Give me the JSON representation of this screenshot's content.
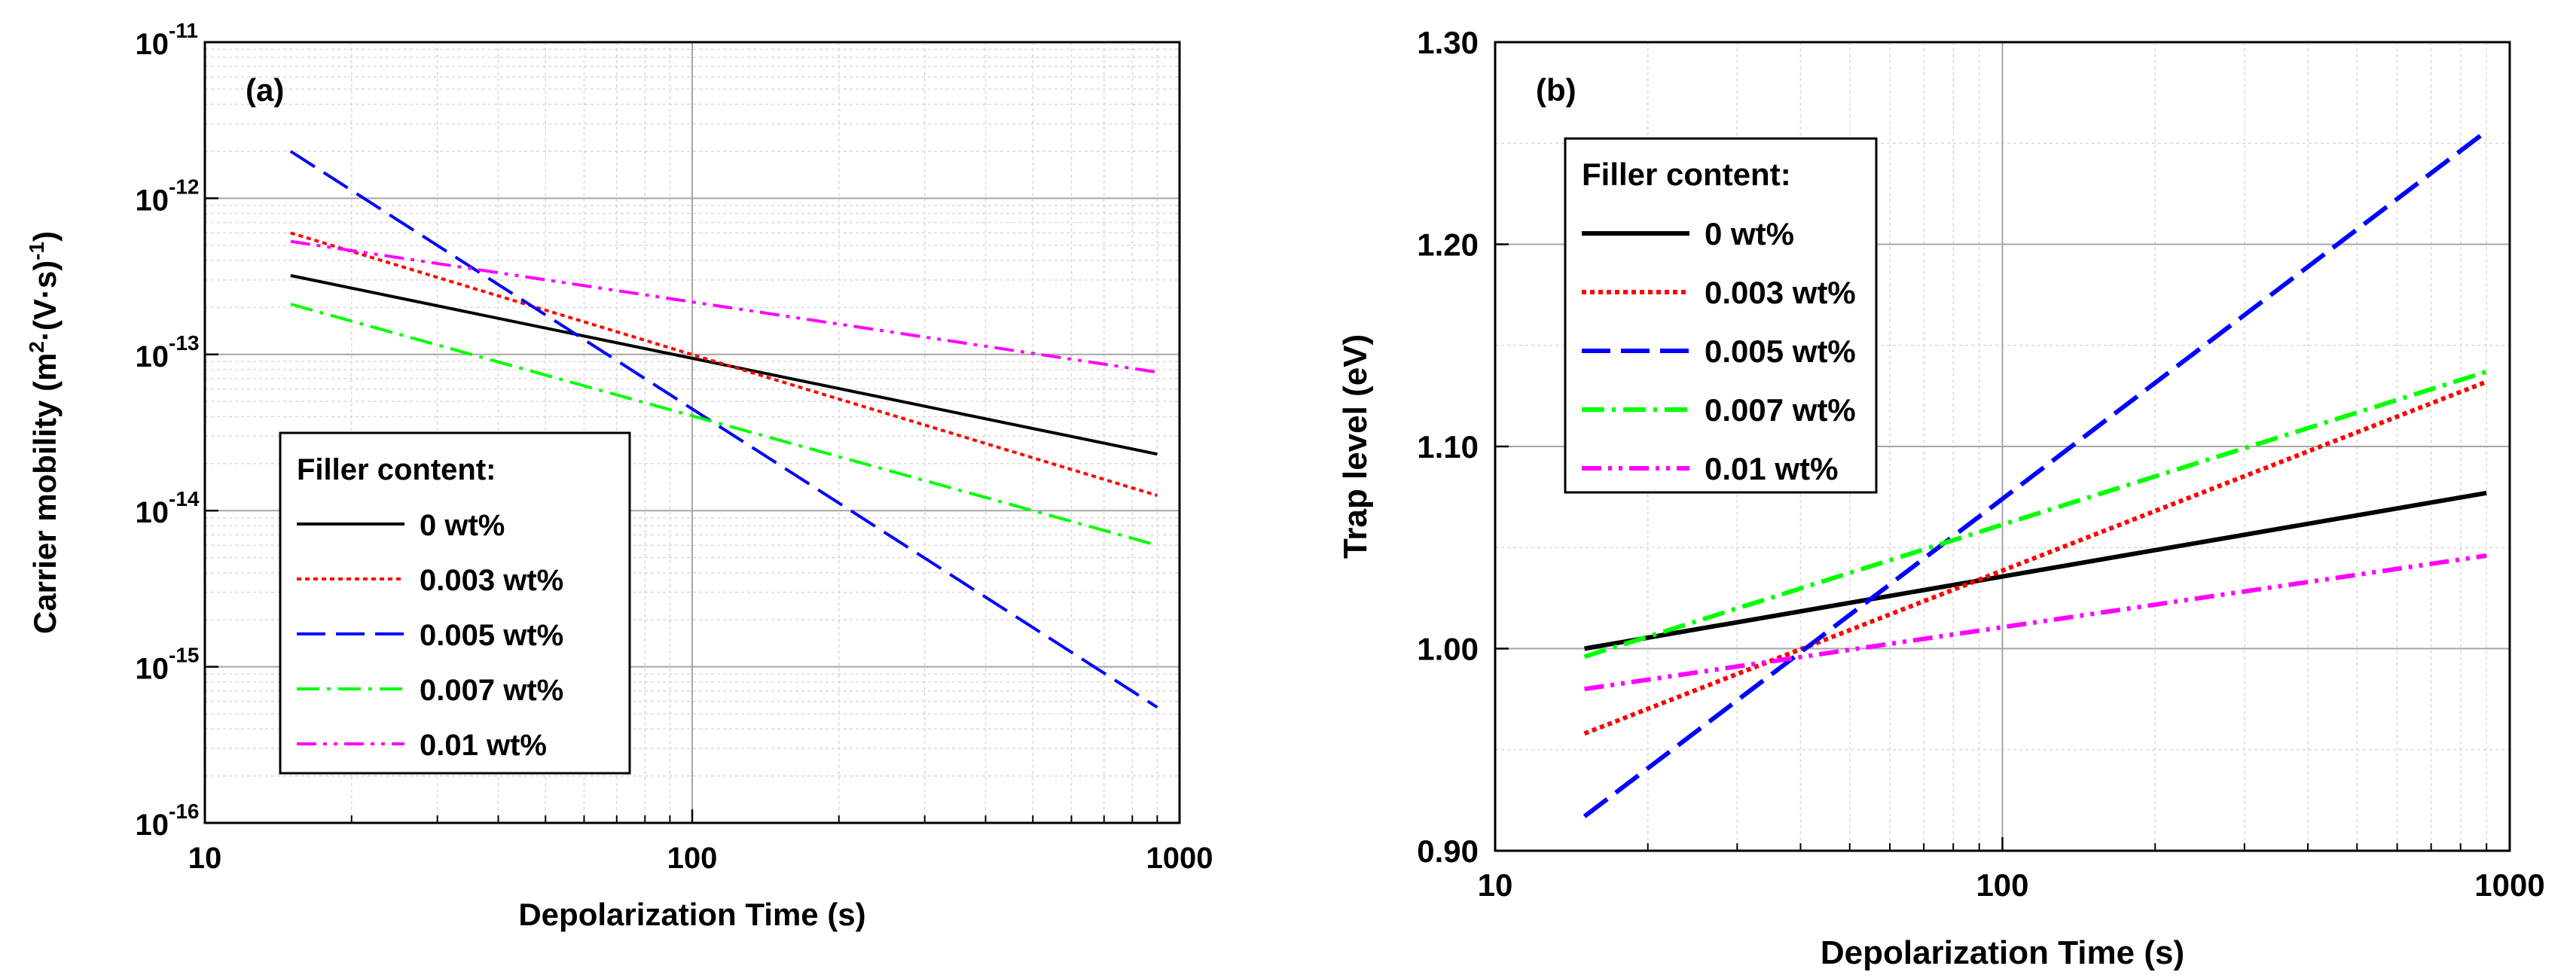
{
  "chart_data": [
    {
      "type": "line",
      "panel_label": "(a)",
      "xlabel": "Depolarization Time (s)",
      "ylabel_main": "Carrier mobility (m",
      "ylabel_sup1": "2",
      "ylabel_mid": "·(V·s)",
      "ylabel_sup2": "-1",
      "ylabel_end": ")",
      "xscale": "log",
      "yscale": "log",
      "xlim": [
        10,
        1000
      ],
      "ylim": [
        1e-16,
        1e-11
      ],
      "x_ticks": [
        {
          "v": 10,
          "t": "10"
        },
        {
          "v": 100,
          "t": "100"
        },
        {
          "v": 1000,
          "t": "1000"
        }
      ],
      "y_ticks": [
        {
          "v": 1e-16,
          "b": "10",
          "e": "-16"
        },
        {
          "v": 1e-15,
          "b": "10",
          "e": "-15"
        },
        {
          "v": 1e-14,
          "b": "10",
          "e": "-14"
        },
        {
          "v": 1e-13,
          "b": "10",
          "e": "-13"
        },
        {
          "v": 1e-12,
          "b": "10",
          "e": "-12"
        },
        {
          "v": 1e-11,
          "b": "10",
          "e": "-11"
        }
      ],
      "grid": true,
      "legend": {
        "title": "Filler content:",
        "position": "lower-left"
      },
      "series": [
        {
          "name": "0 wt%",
          "color": "#000000",
          "dash": "solid",
          "x": [
            15,
            900
          ],
          "y": [
            3.2e-13,
            2.3e-14
          ]
        },
        {
          "name": "0.003 wt%",
          "color": "#ff0000",
          "dash": "dotted",
          "x": [
            15,
            900
          ],
          "y": [
            6e-13,
            1.25e-14
          ]
        },
        {
          "name": "0.005 wt%",
          "color": "#0000ff",
          "dash": "dashed",
          "x": [
            15,
            900
          ],
          "y": [
            2e-12,
            5.5e-16
          ]
        },
        {
          "name": "0.007 wt%",
          "color": "#00ff00",
          "dash": "dashdot",
          "x": [
            15,
            900
          ],
          "y": [
            2.1e-13,
            6e-15
          ]
        },
        {
          "name": "0.01 wt%",
          "color": "#ff00ff",
          "dash": "dashdotdot",
          "x": [
            15,
            900
          ],
          "y": [
            5.3e-13,
            7.7e-14
          ]
        }
      ]
    },
    {
      "type": "line",
      "panel_label": "(b)",
      "xlabel": "Depolarization Time (s)",
      "ylabel": "Trap level (eV)",
      "xscale": "log",
      "yscale": "linear",
      "xlim": [
        10,
        1000
      ],
      "ylim": [
        0.9,
        1.3
      ],
      "x_ticks": [
        {
          "v": 10,
          "t": "10"
        },
        {
          "v": 100,
          "t": "100"
        },
        {
          "v": 1000,
          "t": "1000"
        }
      ],
      "y_ticks": [
        {
          "v": 0.9,
          "t": "0.90"
        },
        {
          "v": 1.0,
          "t": "1.00"
        },
        {
          "v": 1.1,
          "t": "1.10"
        },
        {
          "v": 1.2,
          "t": "1.20"
        },
        {
          "v": 1.3,
          "t": "1.30"
        }
      ],
      "grid": true,
      "legend": {
        "title": "Filler content:",
        "position": "upper-left"
      },
      "series": [
        {
          "name": "0 wt%",
          "color": "#000000",
          "dash": "solid",
          "x": [
            15,
            900
          ],
          "y": [
            1.0,
            1.077
          ]
        },
        {
          "name": "0.003 wt%",
          "color": "#ff0000",
          "dash": "dotted",
          "x": [
            15,
            900
          ],
          "y": [
            0.958,
            1.132
          ]
        },
        {
          "name": "0.005 wt%",
          "color": "#0000ff",
          "dash": "dashed",
          "x": [
            15,
            900
          ],
          "y": [
            0.917,
            1.256
          ]
        },
        {
          "name": "0.007 wt%",
          "color": "#00ff00",
          "dash": "dashdot",
          "x": [
            15,
            900
          ],
          "y": [
            0.996,
            1.137
          ]
        },
        {
          "name": "0.01 wt%",
          "color": "#ff00ff",
          "dash": "dashdotdot",
          "x": [
            15,
            900
          ],
          "y": [
            0.98,
            1.046
          ]
        }
      ]
    }
  ]
}
